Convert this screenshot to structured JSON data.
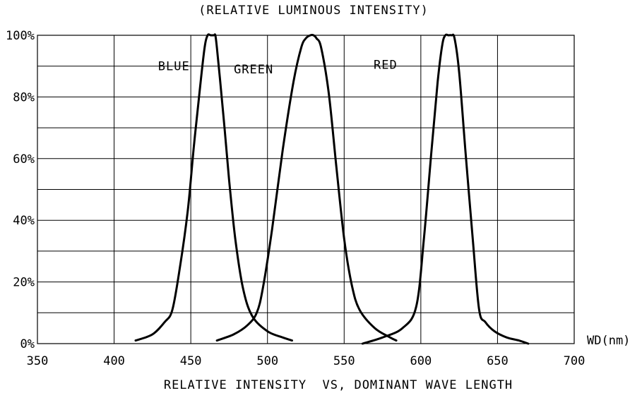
{
  "chart_data": {
    "type": "line",
    "title": "(RELATIVE LUMINOUS INTENSITY)",
    "xlabel": "RELATIVE INTENSITY  VS, DOMINANT WAVE LENGTH",
    "xunit": "WD(nm)",
    "ylabel": "",
    "xlim": [
      350,
      700
    ],
    "ylim": [
      0,
      100
    ],
    "x_ticks": [
      350,
      400,
      450,
      500,
      550,
      600,
      650,
      700
    ],
    "x_tick_labels": [
      "350",
      "400",
      "450",
      "500",
      "550",
      "600",
      "650",
      "700"
    ],
    "y_ticks": [
      0,
      20,
      40,
      60,
      80,
      100
    ],
    "y_tick_labels": [
      "0%",
      "20%",
      "40%",
      "60%",
      "80%",
      "100%"
    ],
    "grid": true,
    "series": [
      {
        "name": "BLUE",
        "x": [
          414,
          425,
          433,
          438,
          443,
          448,
          452,
          456,
          459,
          461,
          463,
          465,
          466,
          467,
          469,
          472,
          475,
          479,
          484,
          490,
          500,
          510,
          516
        ],
        "y": [
          1,
          3,
          7,
          11,
          25,
          43,
          64,
          83,
          96,
          100,
          100,
          100,
          100,
          96,
          86,
          70,
          53,
          34,
          18,
          9,
          4,
          2,
          1
        ]
      },
      {
        "name": "GREEN",
        "x": [
          467,
          478,
          487,
          493,
          497,
          503,
          510,
          517,
          522,
          525,
          528,
          530,
          532,
          535,
          540,
          545,
          550,
          555,
          560,
          570,
          580,
          584
        ],
        "y": [
          1,
          3,
          6,
          10,
          18,
          37,
          63,
          85,
          96,
          99,
          100,
          100,
          99,
          96,
          81,
          57,
          34,
          19,
          11,
          5,
          2,
          1
        ]
      },
      {
        "name": "RED",
        "x": [
          562,
          575,
          588,
          597,
          602,
          607,
          611,
          614,
          616,
          618,
          620,
          622,
          625,
          629,
          634,
          638,
          642,
          648,
          656,
          664,
          670
        ],
        "y": [
          0,
          2,
          5,
          12,
          34,
          63,
          85,
          97,
          100,
          100,
          100,
          99,
          88,
          63,
          33,
          11,
          7,
          4,
          2,
          1,
          0
        ]
      }
    ],
    "series_label_positions_hint": "labels placed near the peaks"
  }
}
